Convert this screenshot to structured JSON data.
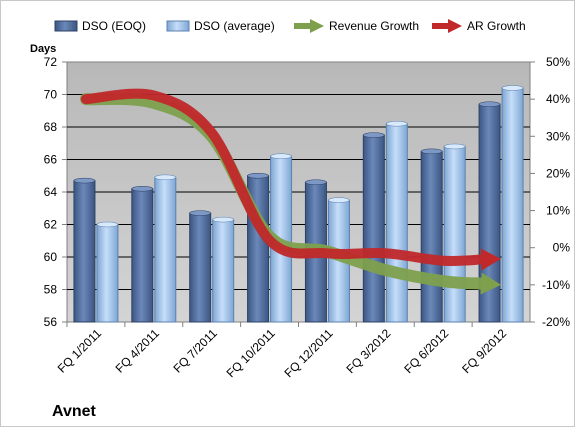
{
  "chart_data": {
    "type": "bar",
    "company": "Avnet",
    "y_left_label": "Days",
    "categories": [
      "FQ 1/2011",
      "FQ 4/2011",
      "FQ 7/2011",
      "FQ 10/2011",
      "FQ 12/2011",
      "FQ 3/2012",
      "FQ 6/2012",
      "FQ 9/2012"
    ],
    "ylim_left": [
      56,
      72
    ],
    "yticks_left": [
      56,
      58,
      60,
      62,
      64,
      66,
      68,
      70,
      72
    ],
    "ylim_right": [
      -20,
      50
    ],
    "yticks_right": [
      -20,
      -10,
      0,
      10,
      20,
      30,
      40,
      50
    ],
    "y_right_unit": "%",
    "series": [
      {
        "name": "DSO (EOQ)",
        "type": "bar",
        "axis": "left",
        "color": "#4f6d9f",
        "values": [
          64.7,
          64.2,
          62.7,
          65.0,
          64.6,
          67.5,
          66.5,
          69.4
        ]
      },
      {
        "name": "DSO (average)",
        "type": "bar",
        "axis": "left",
        "color": "#a6c8ee",
        "values": [
          62.0,
          64.9,
          62.3,
          66.2,
          63.5,
          68.2,
          66.8,
          70.4
        ]
      },
      {
        "name": "Revenue Growth",
        "type": "line",
        "axis": "right",
        "color": "#7ea04d",
        "values": [
          40,
          39,
          30,
          3,
          -1,
          -6,
          -9,
          -10
        ]
      },
      {
        "name": "AR Growth",
        "type": "line",
        "axis": "right",
        "color": "#c0282a",
        "values": [
          40,
          41,
          31,
          2,
          -1.5,
          -1.5,
          -3.5,
          -3
        ]
      }
    ],
    "legend_position": "top",
    "grid": true
  }
}
